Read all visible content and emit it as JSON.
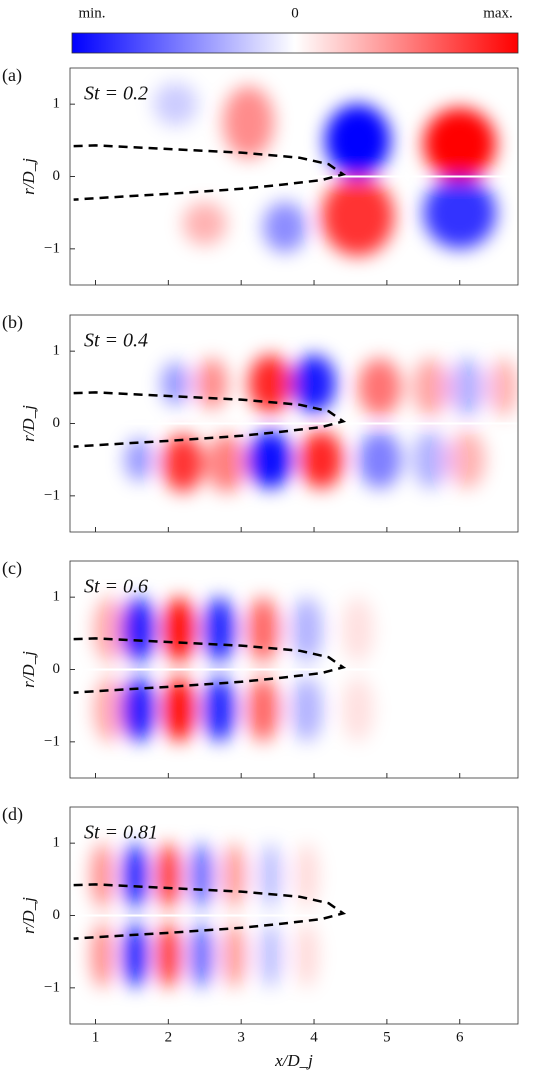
{
  "colorbar": {
    "labels": [
      "min.",
      "0",
      "max."
    ]
  },
  "chart_data": [
    {
      "type": "heatmap",
      "panel_label": "(a)",
      "annotation": "St = 0.2",
      "ylabel": "r/D_j",
      "xlim": [
        0.65,
        6.8
      ],
      "ylim": [
        -1.5,
        1.5
      ],
      "yticks": [
        {
          "value": -1,
          "label": "−1"
        },
        0,
        1
      ]
    },
    {
      "type": "heatmap",
      "panel_label": "(b)",
      "annotation": "St = 0.4",
      "ylabel": "r/D_j",
      "xlim": [
        0.65,
        6.8
      ],
      "ylim": [
        -1.5,
        1.5
      ],
      "yticks": [
        {
          "value": -1,
          "label": "−1"
        },
        0,
        1
      ]
    },
    {
      "type": "heatmap",
      "panel_label": "(c)",
      "annotation": "St = 0.6",
      "ylabel": "r/D_j",
      "xlim": [
        0.65,
        6.8
      ],
      "ylim": [
        -1.5,
        1.5
      ],
      "yticks": [
        {
          "value": -1,
          "label": "−1"
        },
        0,
        1
      ]
    },
    {
      "type": "heatmap",
      "panel_label": "(d)",
      "annotation": "St = 0.81",
      "ylabel": "r/D_j",
      "xlabel": "x/D_j",
      "xlim": [
        0.65,
        6.8
      ],
      "ylim": [
        -1.5,
        1.5
      ],
      "yticks": [
        {
          "value": -1,
          "label": "−1"
        },
        0,
        1
      ],
      "xticks": [
        1,
        2,
        3,
        4,
        5,
        6
      ]
    }
  ]
}
